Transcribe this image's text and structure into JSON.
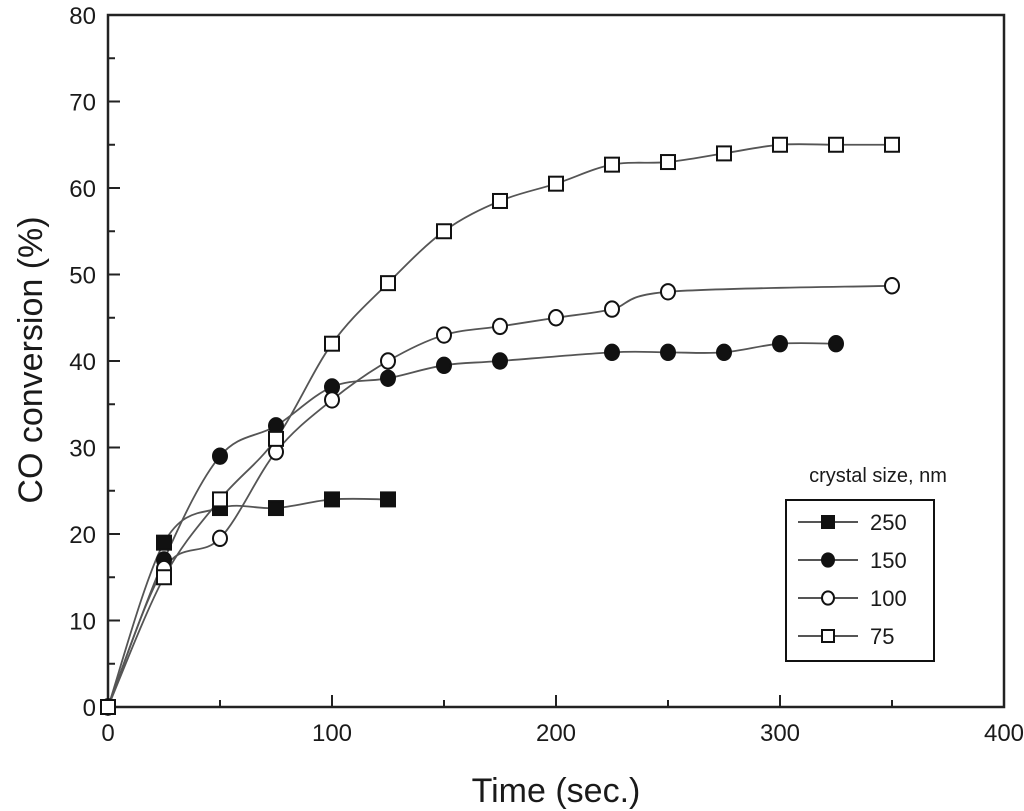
{
  "chart_data": {
    "type": "line",
    "title": "",
    "xlabel": "Time (sec.)",
    "ylabel": "CO conversion (%)",
    "xlim": [
      0,
      400
    ],
    "ylim": [
      0,
      80
    ],
    "xticks": [
      "0",
      "100",
      "200",
      "300",
      "400"
    ],
    "yticks": [
      "0",
      "10",
      "20",
      "30",
      "40",
      "50",
      "60",
      "70",
      "80"
    ],
    "grid": false,
    "legend": {
      "title": "crystal size, nm",
      "placement": "bottom-right"
    },
    "series": [
      {
        "name": "250",
        "marker": "filled-square",
        "x": [
          0,
          25,
          50,
          75,
          100,
          125
        ],
        "y": [
          0,
          19,
          23,
          23,
          24,
          24
        ]
      },
      {
        "name": "150",
        "marker": "filled-circle",
        "x": [
          0,
          25,
          50,
          75,
          100,
          125,
          150,
          175,
          225,
          250,
          275,
          300,
          325
        ],
        "y": [
          0,
          17,
          29,
          32.5,
          37,
          38,
          39.5,
          40,
          41,
          41,
          41,
          42,
          42
        ]
      },
      {
        "name": "100",
        "marker": "open-circle",
        "x": [
          0,
          25,
          50,
          75,
          100,
          125,
          150,
          175,
          200,
          225,
          250,
          350
        ],
        "y": [
          0,
          16,
          19.5,
          29.5,
          35.5,
          40,
          43,
          44,
          45,
          46,
          48,
          48.7
        ]
      },
      {
        "name": "75",
        "marker": "open-square",
        "x": [
          0,
          25,
          50,
          75,
          100,
          125,
          150,
          175,
          200,
          225,
          250,
          275,
          300,
          325,
          350
        ],
        "y": [
          0,
          15,
          24,
          31,
          42,
          49,
          55,
          58.5,
          60.5,
          62.7,
          63,
          64,
          65,
          65,
          65
        ]
      }
    ]
  }
}
